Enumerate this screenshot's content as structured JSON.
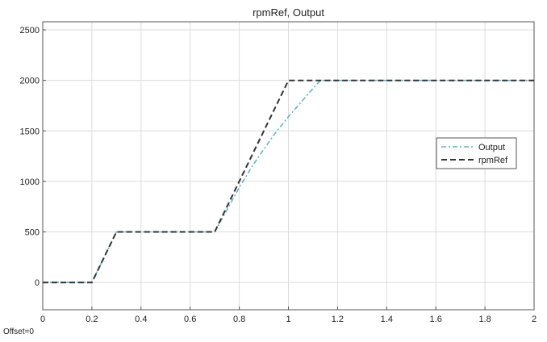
{
  "figure": {
    "title": "rpmRef, Output",
    "footer": "Offset=0"
  },
  "chart_data": {
    "type": "line",
    "title": "rpmRef, Output",
    "xlabel": "",
    "ylabel": "",
    "xlim": [
      0,
      2
    ],
    "ylim": [
      -270,
      2580
    ],
    "x_ticks": [
      0,
      0.2,
      0.4,
      0.6,
      0.8,
      1,
      1.2,
      1.4,
      1.6,
      1.8,
      2
    ],
    "x_tick_labels": [
      "0",
      "0.2",
      "0.4",
      "0.6",
      "0.8",
      "1",
      "1.2",
      "1.4",
      "1.6",
      "1.8",
      "2"
    ],
    "y_ticks": [
      0,
      500,
      1000,
      1500,
      2000,
      2500
    ],
    "y_tick_labels": [
      "0",
      "500",
      "1000",
      "1500",
      "2000",
      "2500"
    ],
    "grid": true,
    "legend_position": "right",
    "series": [
      {
        "name": "Output",
        "color": "#5fb4cc",
        "style": "dash-dot",
        "x": [
          0,
          0.2,
          0.3,
          0.7,
          0.75,
          0.8,
          0.85,
          0.9,
          0.95,
          1.0,
          1.05,
          1.1,
          1.13,
          2
        ],
        "y": [
          0,
          0,
          500,
          500,
          720,
          940,
          1140,
          1320,
          1490,
          1640,
          1780,
          1920,
          2000,
          2000
        ]
      },
      {
        "name": "rpmRef",
        "color": "#333333",
        "style": "dashed",
        "x": [
          0,
          0.2,
          0.3,
          0.7,
          1.0,
          2
        ],
        "y": [
          0,
          0,
          500,
          500,
          2000,
          2000
        ]
      }
    ]
  }
}
